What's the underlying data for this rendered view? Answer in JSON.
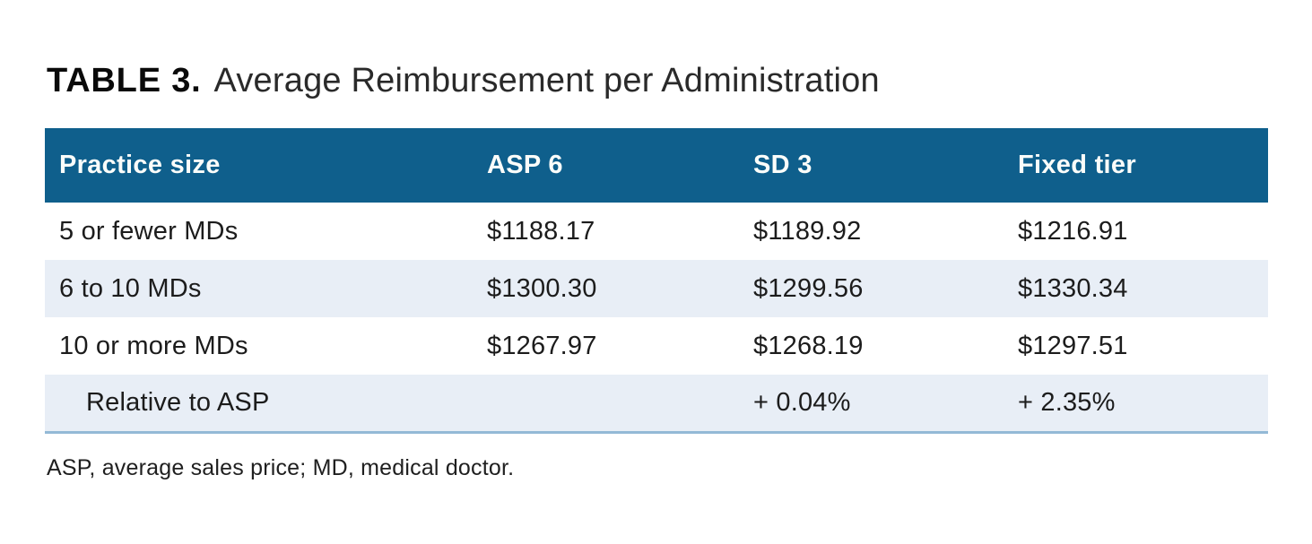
{
  "title": {
    "label": "TABLE 3.",
    "text": "Average Reimbursement per Administration"
  },
  "table": {
    "columns": [
      "Practice size",
      "ASP 6",
      "SD 3",
      "Fixed tier"
    ],
    "rows": [
      {
        "cells": [
          "5 or fewer MDs",
          "$1188.17",
          "$1189.92",
          "$1216.91"
        ]
      },
      {
        "cells": [
          "6 to 10 MDs",
          "$1300.30",
          "$1299.56",
          "$1330.34"
        ]
      },
      {
        "cells": [
          "10 or more MDs",
          "$1267.97",
          "$1268.19",
          "$1297.51"
        ]
      },
      {
        "cells": [
          "Relative to ASP",
          "",
          "+ 0.04%",
          "+ 2.35%"
        ]
      }
    ]
  },
  "footnote": "ASP, average sales price; MD, medical doctor.",
  "colors": {
    "header_bg": "#0f5f8c",
    "header_text": "#fbfdfa",
    "stripe_bg": "#e8eef6",
    "bottom_rule": "#93b9d6",
    "body_text": "#1c1c1c"
  },
  "chart_data": {
    "type": "table",
    "title": "TABLE 3. Average Reimbursement per Administration",
    "columns": [
      "Practice size",
      "ASP 6",
      "SD 3",
      "Fixed tier"
    ],
    "rows": [
      [
        "5 or fewer MDs",
        "$1188.17",
        "$1189.92",
        "$1216.91"
      ],
      [
        "6 to 10 MDs",
        "$1300.30",
        "$1299.56",
        "$1330.34"
      ],
      [
        "10 or more MDs",
        "$1267.97",
        "$1268.19",
        "$1297.51"
      ],
      [
        "Relative to ASP",
        "",
        "+ 0.04%",
        "+ 2.35%"
      ]
    ],
    "footnote": "ASP, average sales price; MD, medical doctor."
  }
}
